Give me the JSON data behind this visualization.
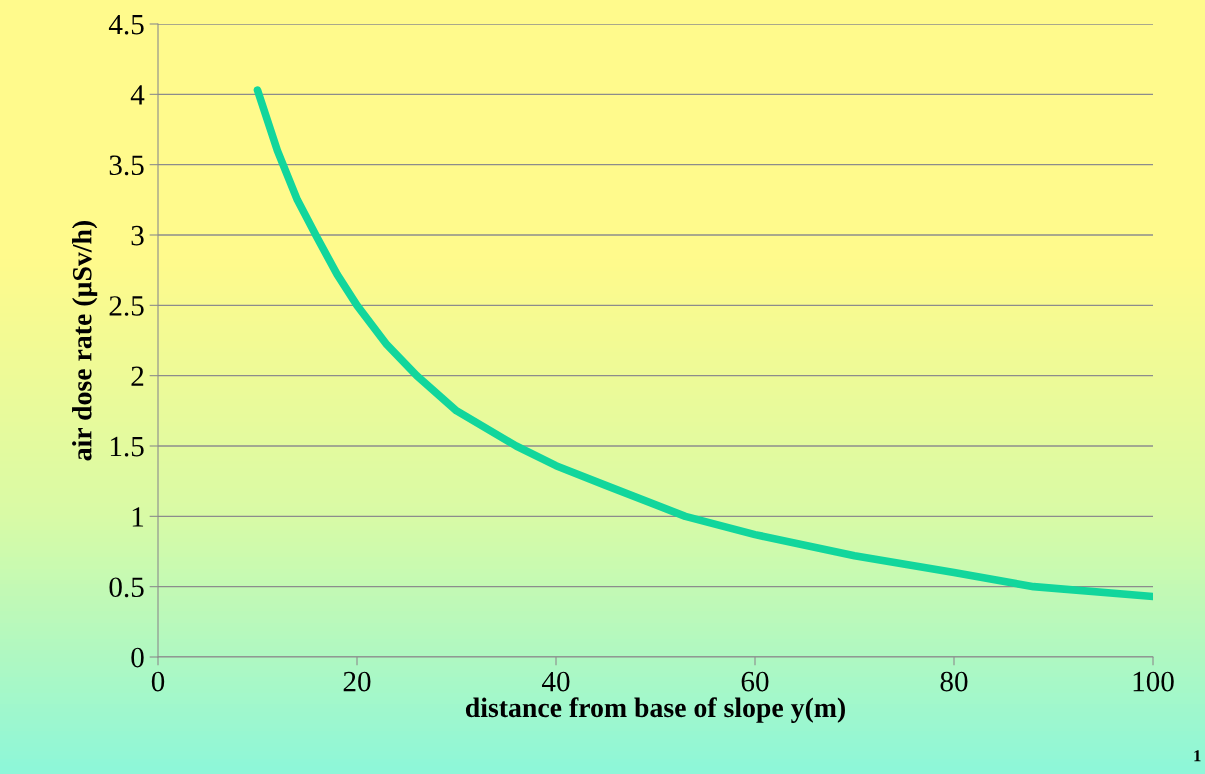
{
  "chart_data": {
    "type": "line",
    "xlabel": "distance from base of slope y(m)",
    "ylabel": "air dose rate (µSv/h)",
    "x": [
      10,
      12,
      14,
      16,
      18,
      20,
      23,
      26,
      30,
      36,
      40,
      45,
      53,
      60,
      70,
      80,
      88,
      100
    ],
    "series": [
      {
        "color": "#12d69c",
        "values": [
          4.03,
          3.6,
          3.25,
          2.98,
          2.72,
          2.5,
          2.22,
          2.0,
          1.75,
          1.5,
          1.36,
          1.22,
          1.0,
          0.87,
          0.72,
          0.6,
          0.5,
          0.43
        ]
      }
    ],
    "xlim": [
      0,
      100
    ],
    "xticks": [
      0,
      20,
      40,
      60,
      80,
      100
    ],
    "ylim": [
      0,
      4.5
    ],
    "yticks": [
      0,
      0.5,
      1,
      1.5,
      2,
      2.5,
      3,
      3.5,
      4,
      4.5
    ],
    "grid": "y",
    "legend": false,
    "marker": "none",
    "line_style": "solid",
    "annotations": [
      "1"
    ]
  }
}
